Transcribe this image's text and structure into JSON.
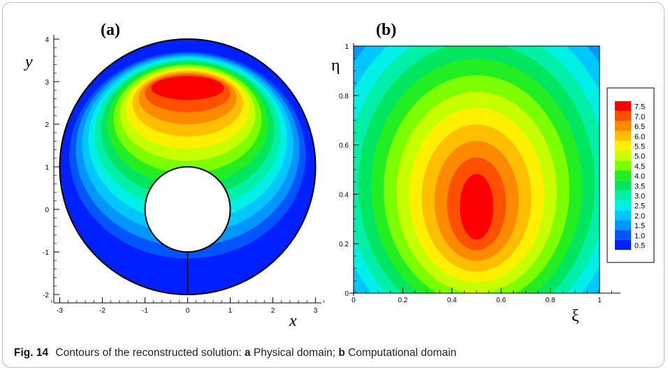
{
  "caption": {
    "figure": "Fig. 14",
    "text_intro": "Contours of the reconstructed solution:",
    "part_a_letter": "a",
    "part_a_text": "Physical domain;",
    "part_b_letter": "b",
    "part_b_text": "Computational domain"
  },
  "chart_data": [
    {
      "type": "contour",
      "panel_label": "(a)",
      "xlabel": "x",
      "ylabel": "y",
      "xlim": [
        -3.3,
        3.3
      ],
      "ylim": [
        -2.2,
        4.1
      ],
      "xticks": [
        "-3",
        "-2",
        "-1",
        "0",
        "1",
        "2",
        "3"
      ],
      "yticks": [
        "-2",
        "-1",
        "0",
        "1",
        "2",
        "3",
        "4"
      ],
      "outer_circle": {
        "cx": 0,
        "cy": 1,
        "r": 3
      },
      "inner_circle": {
        "cx": 0,
        "cy": 0,
        "r": 1
      },
      "cut_line": {
        "x": 0,
        "y0": -2,
        "y1": -1
      },
      "max_region": {
        "x": 0,
        "y": 2.85,
        "value": 7.5
      }
    },
    {
      "type": "contour",
      "panel_label": "(b)",
      "xlabel": "ξ",
      "ylabel": "η",
      "xlim": [
        0,
        1
      ],
      "ylim": [
        0,
        1
      ],
      "xticks": [
        "0",
        "0.2",
        "0.4",
        "0.6",
        "0.8",
        "1"
      ],
      "yticks": [
        "0",
        "0.2",
        "0.4",
        "0.6",
        "0.8",
        "1"
      ],
      "max_region": {
        "x": 0.5,
        "y": 0.35,
        "value": 7.5
      }
    }
  ],
  "legend": {
    "levels": [
      "7.5",
      "7.0",
      "6.5",
      "6.0",
      "5.5",
      "5.0",
      "4.5",
      "4.0",
      "3.5",
      "3.0",
      "2.5",
      "2.0",
      "1.5",
      "1.0",
      "0.5"
    ],
    "colors": [
      "#ff0000",
      "#ff4f00",
      "#ff8a00",
      "#ffbe00",
      "#fff000",
      "#c8ff00",
      "#7cff00",
      "#22ee22",
      "#00e660",
      "#00f0a8",
      "#00f0e8",
      "#00c8ff",
      "#0096ff",
      "#0055ff",
      "#0020ff"
    ]
  }
}
